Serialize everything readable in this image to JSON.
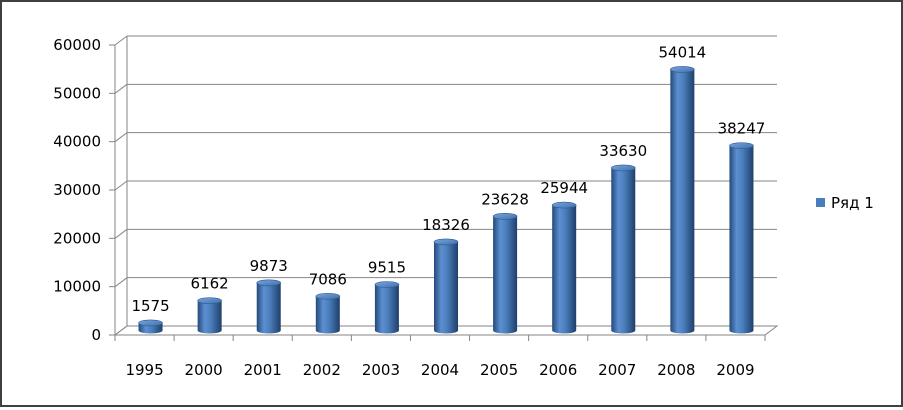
{
  "chart_data": {
    "type": "bar",
    "style": "3d-cylinder",
    "categories": [
      "1995",
      "2000",
      "2001",
      "2002",
      "2003",
      "2004",
      "2005",
      "2006",
      "2007",
      "2008",
      "2009"
    ],
    "series": [
      {
        "name": "Ряд 1",
        "values": [
          1575,
          6162,
          9873,
          7086,
          9515,
          18326,
          23628,
          25944,
          33630,
          54014,
          38247
        ],
        "color": "#4a7ebb"
      }
    ],
    "title": "",
    "xlabel": "",
    "ylabel": "",
    "ylim": [
      0,
      60000
    ],
    "yticks": [
      0,
      10000,
      20000,
      30000,
      40000,
      50000,
      60000
    ],
    "grid": true,
    "legend": "right",
    "data_labels": true
  }
}
